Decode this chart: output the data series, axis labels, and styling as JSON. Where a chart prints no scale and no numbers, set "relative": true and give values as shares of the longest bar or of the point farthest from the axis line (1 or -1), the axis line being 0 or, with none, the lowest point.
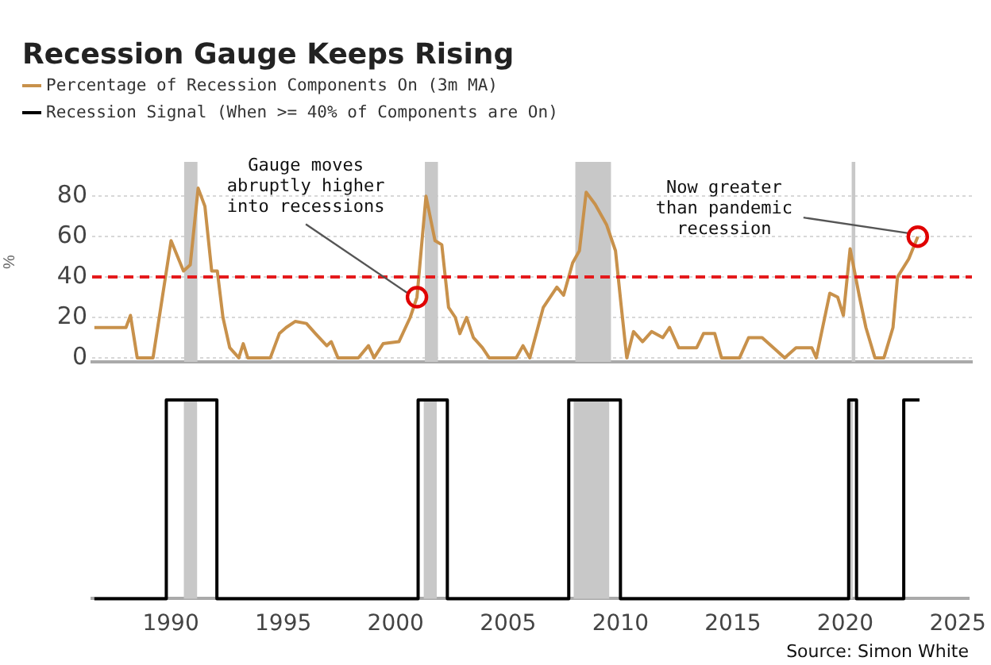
{
  "chart_data": [
    {
      "type": "line",
      "title": "Recession Gauge Keeps Rising",
      "ylabel": "%",
      "legend": "top left",
      "tick_labels": "y",
      "grid": "y",
      "xlim": [
        1986.5,
        2025.5
      ],
      "ylim": [
        -2,
        97
      ],
      "yticks": [
        0,
        20,
        40,
        60,
        80
      ],
      "series": [
        {
          "name": "Percentage of Recession Components On (3m MA)",
          "color": "#c8914b",
          "x": [
            1986.6,
            1988.0,
            1988.2,
            1988.5,
            1989.2,
            1989.6,
            1990.0,
            1990.55,
            1990.85,
            1991.2,
            1991.5,
            1991.8,
            1992.05,
            1992.3,
            1992.6,
            1993.0,
            1993.2,
            1993.4,
            1994.4,
            1994.8,
            1995.1,
            1995.5,
            1996.0,
            1996.4,
            1996.9,
            1997.1,
            1997.4,
            1998.3,
            1998.75,
            1999.0,
            1999.4,
            2000.1,
            2000.6,
            2000.9,
            2001.3,
            2001.7,
            2002.0,
            2002.3,
            2002.6,
            2002.8,
            2003.1,
            2003.4,
            2003.8,
            2004.1,
            2005.3,
            2005.6,
            2005.9,
            2006.5,
            2007.1,
            2007.4,
            2007.8,
            2008.1,
            2008.4,
            2008.8,
            2009.3,
            2009.7,
            2009.95,
            2010.2,
            2010.5,
            2010.9,
            2011.3,
            2011.8,
            2012.1,
            2012.5,
            2013.3,
            2013.6,
            2014.1,
            2014.4,
            2015.2,
            2015.6,
            2016.2,
            2016.8,
            2017.2,
            2017.7,
            2018.4,
            2018.6,
            2019.2,
            2019.55,
            2019.8,
            2020.1,
            2020.5,
            2020.8,
            2021.2,
            2021.6,
            2022.0,
            2022.2,
            2022.7,
            2023.1
          ],
          "values": [
            15,
            15,
            21,
            0,
            0,
            29,
            58,
            43,
            46,
            84,
            75,
            43,
            43,
            20,
            5,
            0,
            7,
            0,
            0,
            12,
            15,
            18,
            17,
            12,
            6,
            8,
            0,
            0,
            6,
            0,
            7,
            8,
            20,
            30,
            80,
            58,
            56,
            25,
            20,
            12,
            20,
            10,
            5,
            0,
            0,
            6,
            0,
            25,
            35,
            31,
            47,
            53,
            82,
            76,
            66,
            53,
            26,
            0,
            13,
            8,
            13,
            10,
            15,
            5,
            5,
            12,
            12,
            0,
            0,
            10,
            10,
            4,
            0,
            5,
            5,
            0,
            32,
            30,
            21,
            54,
            31,
            15,
            0,
            0,
            15,
            40,
            49,
            60
          ]
        }
      ],
      "ref_lines": [
        {
          "axis": "y",
          "value": 40,
          "color": "#e41a1c",
          "line_style": "dashed"
        }
      ],
      "bands": [
        {
          "axis": "x",
          "from": 1990.58,
          "to": 1991.17,
          "color": "#c8c8c8"
        },
        {
          "axis": "x",
          "from": 2001.25,
          "to": 2001.83,
          "color": "#c8c8c8"
        },
        {
          "axis": "x",
          "from": 2007.92,
          "to": 2009.5,
          "color": "#c8c8c8"
        },
        {
          "axis": "x",
          "from": 2020.17,
          "to": 2020.33,
          "color": "#c8c8c8"
        }
      ],
      "annotations": [
        {
          "text": "Gauge moves abruptly higher into recessions",
          "x": 2000.9,
          "y": 30
        },
        {
          "text": "Now greater than pandemic recession",
          "x": 2023.1,
          "y": 60
        }
      ]
    },
    {
      "type": "line",
      "relative": true,
      "legend": "top left",
      "tick_labels": "x",
      "xlim": [
        1986.5,
        2025.5
      ],
      "xticks": [
        1990,
        1995,
        2000,
        2005,
        2010,
        2015,
        2020,
        2025
      ],
      "series": [
        {
          "name": "Recession Signal (When >= 40% of Components are On)",
          "color": "#000000",
          "x": [
            1986.6,
            1989.8,
            1989.8,
            1992.05,
            1992.05,
            2001.0,
            2001.0,
            2002.3,
            2002.3,
            2007.7,
            2007.7,
            2010.0,
            2010.0,
            2020.15,
            2020.15,
            2020.5,
            2020.5,
            2022.6,
            2022.6,
            2023.3
          ],
          "values": [
            0,
            0,
            1,
            1,
            0,
            0,
            1,
            1,
            0,
            0,
            1,
            1,
            0,
            0,
            1,
            1,
            0,
            0,
            1,
            1
          ]
        }
      ],
      "bands": [
        {
          "axis": "x",
          "from": 1990.58,
          "to": 1991.17,
          "color": "#c8c8c8"
        },
        {
          "axis": "x",
          "from": 2001.25,
          "to": 2001.83,
          "color": "#c8c8c8"
        },
        {
          "axis": "x",
          "from": 2007.92,
          "to": 2009.5,
          "color": "#c8c8c8"
        },
        {
          "axis": "x",
          "from": 2020.17,
          "to": 2020.33,
          "color": "#c8c8c8"
        }
      ],
      "annotations": [
        "Source: Simon White"
      ]
    }
  ]
}
